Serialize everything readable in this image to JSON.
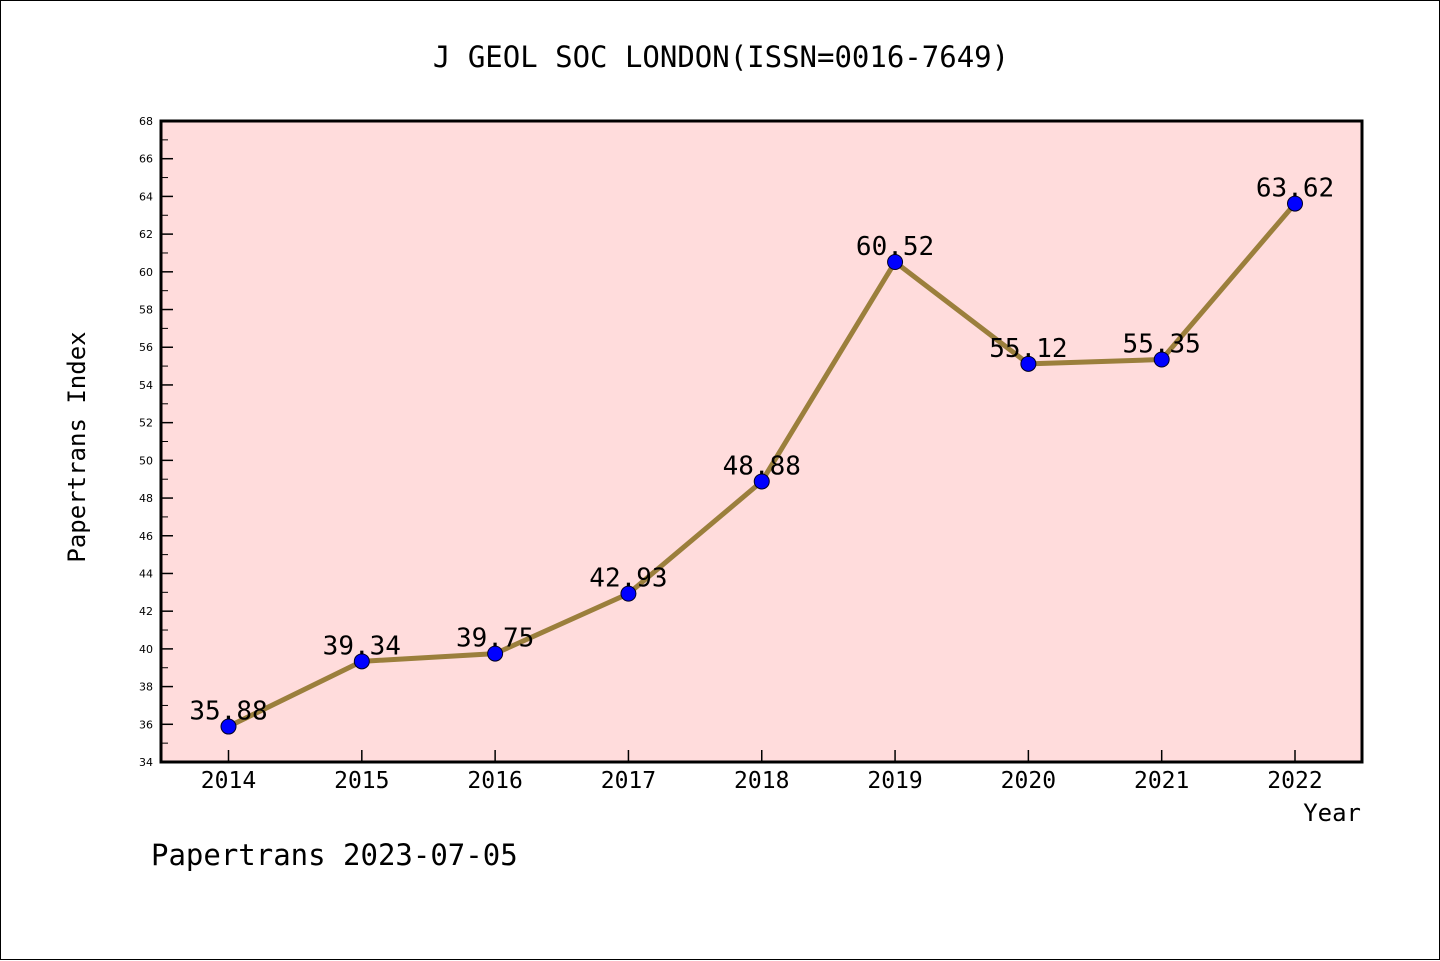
{
  "chart_data": {
    "type": "line",
    "title": "J GEOL SOC LONDON(ISSN=0016-7649)",
    "xlabel": "Year",
    "ylabel": "Papertrans Index",
    "categories": [
      "2014",
      "2015",
      "2016",
      "2017",
      "2018",
      "2019",
      "2020",
      "2021",
      "2022"
    ],
    "values": [
      35.88,
      39.34,
      39.75,
      42.93,
      48.88,
      60.52,
      55.12,
      55.35,
      63.62
    ],
    "data_labels": [
      "35.88",
      "39.34",
      "39.75",
      "42.93",
      "48.88",
      "60.52",
      "55.12",
      "55.35",
      "63.62"
    ],
    "ylim": [
      34,
      68
    ],
    "yticks": [
      "34",
      "36",
      "38",
      "40",
      "42",
      "44",
      "46",
      "48",
      "50",
      "52",
      "54",
      "56",
      "58",
      "60",
      "62",
      "64",
      "66",
      "68"
    ],
    "grid": false,
    "colors": {
      "plot_background": "#ffdcdc",
      "line": "#9b7f3c",
      "marker": "#0000ff"
    }
  },
  "footer": "Papertrans 2023-07-05"
}
